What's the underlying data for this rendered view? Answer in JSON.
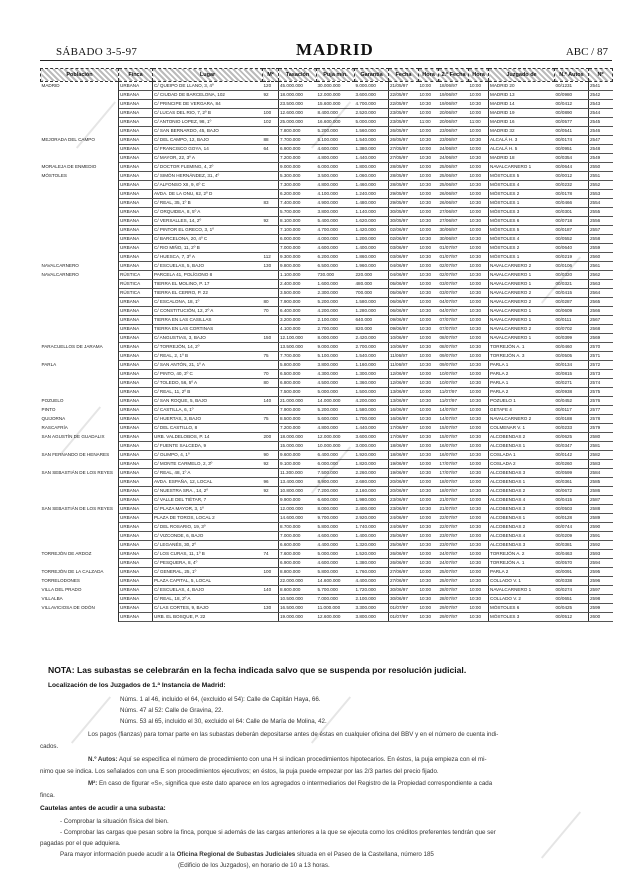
{
  "header": {
    "date": "SÁBADO 3-5-97",
    "section": "MADRID",
    "page": "ABC / 87"
  },
  "table": {
    "columns": [
      "Población",
      "Finca",
      "Lugar",
      "M²",
      "Tasación",
      "Puja mín.",
      "Garantía",
      "Fecha",
      "Hora",
      "2.ª Fecha",
      "Hora",
      "Juzgado de",
      "N.º Autos",
      "Nº"
    ],
    "rows": [
      [
        "MADRID",
        "URBANA",
        "C/ QUEIPO DE LLANO, 3, 4º",
        "120",
        "45.000.000",
        "30.000.000",
        "9.000.000",
        "21/05/97",
        "10:00",
        "18/06/97",
        "10:00",
        "MADRID 20",
        "00/1231",
        "2541"
      ],
      [
        "",
        "URBANA",
        "C/ CIUDAD DE BARCELONA, 102",
        "92",
        "18.000.000",
        "12.000.000",
        "3.600.000",
        "22/05/97",
        "10:00",
        "19/06/97",
        "10:00",
        "MADRID 13",
        "00/0980",
        "2542"
      ],
      [
        "",
        "URBANA",
        "C/ PRINCIPE DE VERGARA, 84",
        "",
        "23.500.000",
        "15.600.000",
        "4.700.000",
        "22/05/97",
        "10:30",
        "19/06/97",
        "10:30",
        "MADRID 14",
        "00/0412",
        "2543"
      ],
      [
        "",
        "URBANA",
        "C/ LUCAS DEL RIO, 7, 2º B",
        "100",
        "12.600.000",
        "8.400.000",
        "2.520.000",
        "23/05/97",
        "10:00",
        "20/06/97",
        "10:00",
        "MADRID 19",
        "00/0890",
        "2544"
      ],
      [
        "",
        "URBANA",
        "C/ ANTONIO LOPEZ, 98, 1º",
        "102",
        "25.000.000",
        "16.600.000",
        "5.000.000",
        "23/05/97",
        "11:00",
        "20/06/97",
        "11:00",
        "MADRID 16",
        "00/0577",
        "2545"
      ],
      [
        "",
        "URBANA",
        "C/ SAN BERNARDO, 45, BAJO",
        "",
        "7.800.000",
        "5.200.000",
        "1.560.000",
        "26/05/97",
        "10:00",
        "23/06/97",
        "10:00",
        "MADRID 32",
        "00/0541",
        "2546"
      ],
      [
        "MEJORADA DEL CAMPO",
        "URBANA",
        "C/ DEL CAMPO, 12, BAJO",
        "88",
        "7.700.000",
        "5.100.000",
        "1.540.000",
        "26/05/97",
        "10:30",
        "23/06/97",
        "10:30",
        "ALCALÁ H. 3",
        "00/0174",
        "2547"
      ],
      [
        "",
        "URBANA",
        "C/ FRANCISCO GOYA, 14",
        "64",
        "6.900.000",
        "4.600.000",
        "1.380.000",
        "27/05/97",
        "10:00",
        "24/06/97",
        "10:00",
        "ALCALÁ H. 5",
        "00/0951",
        "2548"
      ],
      [
        "",
        "URBANA",
        "C/ MAYOR, 22, 3º A",
        "",
        "7.200.000",
        "4.800.000",
        "1.440.000",
        "27/05/97",
        "10:30",
        "24/06/97",
        "10:30",
        "MADRID 18",
        "00/0354",
        "2549"
      ],
      [
        "MORALEJA DE ENMEDIO",
        "URBANA",
        "C/ DOCTOR FLEMING, 4, 3º",
        "",
        "9.000.000",
        "6.000.000",
        "1.800.000",
        "28/05/97",
        "10:00",
        "25/06/97",
        "10:00",
        "NAVALCARNERO 1",
        "00/0644",
        "2550"
      ],
      [
        "MÓSTOLES",
        "URBANA",
        "C/ SIMÓN HERNÁNDEZ, 31, 4º",
        "",
        "5.300.000",
        "3.500.000",
        "1.060.000",
        "28/05/97",
        "10:00",
        "25/06/97",
        "10:00",
        "MÓSTOLES 5",
        "00/0012",
        "2551"
      ],
      [
        "",
        "URBANA",
        "C/ ALFONSO XII, 9, 6º C",
        "",
        "7.300.000",
        "4.800.000",
        "1.460.000",
        "28/05/97",
        "10:30",
        "25/06/97",
        "10:30",
        "MÓSTOLES 4",
        "00/0232",
        "2552"
      ],
      [
        "",
        "URBANA",
        "AVDA. DE LA ONU, 62, 2º D",
        "",
        "6.200.000",
        "4.100.000",
        "1.240.000",
        "29/05/97",
        "10:00",
        "26/06/97",
        "10:00",
        "MÓSTOLES 2",
        "00/0178",
        "2553"
      ],
      [
        "",
        "URBANA",
        "C/ REAL, 35, 1º B",
        "83",
        "7.400.000",
        "4.900.000",
        "1.480.000",
        "29/05/97",
        "10:30",
        "26/06/97",
        "10:30",
        "MÓSTOLES 1",
        "00/0466",
        "2554"
      ],
      [
        "",
        "URBANA",
        "C/ ORQUIDEA, 8, 5º A",
        "",
        "5.700.000",
        "3.800.000",
        "1.140.000",
        "30/05/97",
        "10:00",
        "27/06/97",
        "10:00",
        "MÓSTOLES 3",
        "00/0301",
        "2555"
      ],
      [
        "",
        "URBANA",
        "C/ VERSALLES, 14, 2º",
        "92",
        "8.100.000",
        "5.400.000",
        "1.620.000",
        "30/05/97",
        "10:30",
        "27/06/97",
        "10:30",
        "MÓSTOLES 6",
        "00/0718",
        "2556"
      ],
      [
        "",
        "URBANA",
        "C/ PINTOR EL GRECO, 3, 1º",
        "",
        "7.100.000",
        "4.700.000",
        "1.420.000",
        "02/06/97",
        "10:00",
        "30/06/97",
        "10:00",
        "MÓSTOLES 5",
        "00/0187",
        "2557"
      ],
      [
        "",
        "URBANA",
        "C/ BARCELONA, 20, 4º C",
        "",
        "6.000.000",
        "4.000.000",
        "1.200.000",
        "02/06/97",
        "10:30",
        "30/06/97",
        "10:30",
        "MÓSTOLES 4",
        "00/0552",
        "2558"
      ],
      [
        "",
        "URBANA",
        "C/ RIO MIÑO, 11, 2º B",
        "",
        "7.000.000",
        "4.600.000",
        "1.400.000",
        "03/06/97",
        "10:00",
        "01/07/97",
        "10:00",
        "MÓSTOLES 2",
        "00/0640",
        "2559"
      ],
      [
        "",
        "URBANA",
        "C/ HUESCA, 7, 3º A",
        "112",
        "9.300.000",
        "6.200.000",
        "1.860.000",
        "03/06/97",
        "10:30",
        "01/07/97",
        "10:30",
        "MÓSTOLES 1",
        "00/0219",
        "2560"
      ],
      [
        "NAVALCARNERO",
        "URBANA",
        "C/ ESCUELAS, 5, BAJO",
        "130",
        "9.800.000",
        "6.500.000",
        "1.960.000",
        "04/06/97",
        "10:00",
        "02/07/97",
        "10:00",
        "NAVALCARNERO 2",
        "00/0106",
        "2561"
      ],
      [
        "NAVALCARNERO",
        "RÚSTICA",
        "PARCELA 41, POLÍGONO 8",
        "",
        "1.100.000",
        "730.000",
        "220.000",
        "04/06/97",
        "10:30",
        "02/07/97",
        "10:30",
        "NAVALCARNERO 1",
        "00/0320",
        "2562"
      ],
      [
        "",
        "RÚSTICA",
        "TIERRA EL MOLINO, P. 17",
        "",
        "2.400.000",
        "1.600.000",
        "480.000",
        "05/06/97",
        "10:00",
        "03/07/97",
        "10:00",
        "NAVALCARNERO 1",
        "00/0321",
        "2563"
      ],
      [
        "",
        "RÚSTICA",
        "TIERRA EL CERRO, P. 22",
        "",
        "3.500.000",
        "2.300.000",
        "700.000",
        "05/06/97",
        "10:30",
        "03/07/97",
        "10:30",
        "NAVALCARNERO 2",
        "00/0415",
        "2564"
      ],
      [
        "",
        "URBANA",
        "C/ ESCALONA, 18, 1º",
        "80",
        "7.900.000",
        "5.200.000",
        "1.580.000",
        "06/06/97",
        "10:00",
        "04/07/97",
        "10:00",
        "NAVALCARNERO 2",
        "00/0287",
        "2565"
      ],
      [
        "",
        "URBANA",
        "C/ CONSTITUCIÓN, 12, 2º A",
        "70",
        "6.400.000",
        "4.200.000",
        "1.280.000",
        "06/06/97",
        "10:30",
        "04/07/97",
        "10:30",
        "NAVALCARNERO 1",
        "00/0609",
        "2566"
      ],
      [
        "",
        "URBANA",
        "TIERRA EN LAS CASILLAS",
        "",
        "3.200.000",
        "2.100.000",
        "640.000",
        "09/06/97",
        "10:00",
        "07/07/97",
        "10:00",
        "NAVALCARNERO 1",
        "00/0111",
        "2567"
      ],
      [
        "",
        "URBANA",
        "TIERRA EN LAS CORTINAS",
        "",
        "4.100.000",
        "2.700.000",
        "820.000",
        "09/06/97",
        "10:30",
        "07/07/97",
        "10:30",
        "NAVALCARNERO 2",
        "00/0702",
        "2568"
      ],
      [
        "",
        "URBANA",
        "C/ ANGUSTIAS, 3, BAJO",
        "150",
        "12.100.000",
        "8.000.000",
        "2.420.000",
        "10/06/97",
        "10:00",
        "08/07/97",
        "10:00",
        "NAVALCARNERO 1",
        "00/0399",
        "2569"
      ],
      [
        "PARACUELLOS DE JARAMA",
        "URBANA",
        "C/ TORREJÓN, 14, 2º",
        "",
        "13.500.000",
        "9.000.000",
        "2.700.000",
        "10/06/97",
        "10:30",
        "08/07/97",
        "10:30",
        "TORREJÓN A. 1",
        "00/0460",
        "2570"
      ],
      [
        "",
        "URBANA",
        "C/ REAL, 2, 1º B",
        "75",
        "7.700.000",
        "5.100.000",
        "1.540.000",
        "11/06/97",
        "10:00",
        "09/07/97",
        "10:00",
        "TORREJÓN A. 3",
        "00/0505",
        "2571"
      ],
      [
        "PARLA",
        "URBANA",
        "C/ SAN ANTÓN, 21, 1º A",
        "",
        "5.800.000",
        "3.800.000",
        "1.160.000",
        "11/06/97",
        "10:30",
        "09/07/97",
        "10:30",
        "PARLA 1",
        "00/0134",
        "2572"
      ],
      [
        "",
        "URBANA",
        "C/ PINTO, 40, 3º C",
        "70",
        "6.500.000",
        "4.300.000",
        "1.300.000",
        "12/06/97",
        "10:00",
        "10/07/97",
        "10:00",
        "PARLA 2",
        "00/0815",
        "2573"
      ],
      [
        "",
        "URBANA",
        "C/ TOLEDO, 56, 5º A",
        "80",
        "6.800.000",
        "4.500.000",
        "1.360.000",
        "12/06/97",
        "10:30",
        "10/07/97",
        "10:30",
        "PARLA 1",
        "00/0271",
        "2574"
      ],
      [
        "",
        "URBANA",
        "C/ REAL, 11, 2º B",
        "",
        "7.500.000",
        "5.000.000",
        "1.500.000",
        "13/06/97",
        "10:00",
        "11/07/97",
        "10:00",
        "PARLA 2",
        "00/0938",
        "2575"
      ],
      [
        "POZUELO",
        "URBANA",
        "C/ SAN ROQUE, 5, BAJO",
        "140",
        "21.000.000",
        "14.000.000",
        "4.200.000",
        "13/06/97",
        "10:30",
        "11/07/97",
        "10:30",
        "POZUELO 1",
        "00/0452",
        "2576"
      ],
      [
        "PINTO",
        "URBANA",
        "C/ CASTILLA, 6, 1º",
        "",
        "7.900.000",
        "5.200.000",
        "1.580.000",
        "16/06/97",
        "10:00",
        "14/07/97",
        "10:00",
        "GETAFE 4",
        "00/0117",
        "2577"
      ],
      [
        "QUIJORNA",
        "URBANA",
        "C/ HUERTAS, 3, BAJO",
        "75",
        "8.500.000",
        "5.600.000",
        "1.700.000",
        "16/06/97",
        "10:30",
        "14/07/97",
        "10:30",
        "NAVALCARNERO 2",
        "00/0188",
        "2578"
      ],
      [
        "RASCAFRÍA",
        "URBANA",
        "C/ DEL CASTILLO, 8",
        "",
        "7.200.000",
        "4.800.000",
        "1.440.000",
        "17/06/97",
        "10:00",
        "15/07/97",
        "10:00",
        "COLMENAR V. 1",
        "00/0233",
        "2579"
      ],
      [
        "SAN AGUSTÍN DE GUADALIX",
        "URBANA",
        "URB. VALDELOBOS, P. 14",
        "200",
        "18.000.000",
        "12.000.000",
        "3.600.000",
        "17/06/97",
        "10:30",
        "15/07/97",
        "10:30",
        "ALCOBENDAS 2",
        "00/0625",
        "2580"
      ],
      [
        "",
        "URBANA",
        "C/ FUENTE SALCEDA, 9",
        "",
        "15.000.000",
        "10.000.000",
        "3.000.000",
        "18/06/97",
        "10:00",
        "16/07/97",
        "10:00",
        "ALCOBENDAS 1",
        "00/0347",
        "2581"
      ],
      [
        "SAN FERNANDO DE HENARES",
        "URBANA",
        "C/ OLIMPO, 4, 1º",
        "90",
        "9.600.000",
        "6.400.000",
        "1.920.000",
        "18/06/97",
        "10:30",
        "16/07/97",
        "10:30",
        "COSLADA 1",
        "00/0142",
        "2582"
      ],
      [
        "",
        "URBANA",
        "C/ MONTE CARMELO, 2, 3º",
        "92",
        "9.100.000",
        "6.000.000",
        "1.820.000",
        "19/06/97",
        "10:00",
        "17/07/97",
        "10:00",
        "COSLADA 2",
        "00/0260",
        "2583"
      ],
      [
        "SAN SEBASTIÁN DE LOS REYES",
        "URBANA",
        "C/ REAL, 48, 1º A",
        "",
        "11.300.000",
        "7.500.000",
        "2.260.000",
        "19/06/97",
        "10:30",
        "17/07/97",
        "10:30",
        "ALCOBENDAS 3",
        "00/0599",
        "2584"
      ],
      [
        "",
        "URBANA",
        "AVDA. ESPAÑA, 12, LOCAL",
        "96",
        "13.400.000",
        "8.900.000",
        "2.680.000",
        "20/06/97",
        "10:00",
        "18/07/97",
        "10:00",
        "ALCOBENDAS 1",
        "00/0361",
        "2585"
      ],
      [
        "",
        "URBANA",
        "C/ NUESTRA SRA., 14, 2º",
        "92",
        "10.800.000",
        "7.200.000",
        "2.160.000",
        "20/06/97",
        "10:30",
        "18/07/97",
        "10:30",
        "ALCOBENDAS 2",
        "00/0672",
        "2586"
      ],
      [
        "",
        "URBANA",
        "C/ VALLE DEL TIÉTAR, 7",
        "",
        "9.900.000",
        "6.600.000",
        "1.980.000",
        "23/06/97",
        "10:00",
        "21/07/97",
        "10:00",
        "ALCOBENDAS 4",
        "00/0415",
        "2587"
      ],
      [
        "SAN SEBASTIÁN DE LOS REYES",
        "URBANA",
        "C/ PLAZA MAYOR, 3, 1º",
        "",
        "12.000.000",
        "8.000.000",
        "2.400.000",
        "23/06/97",
        "10:30",
        "21/07/97",
        "10:30",
        "ALCOBENDAS 3",
        "00/0503",
        "2588"
      ],
      [
        "",
        "URBANA",
        "PLAZA DE TOROS, LOCAL 2",
        "",
        "14.600.000",
        "9.700.000",
        "2.920.000",
        "24/06/97",
        "10:00",
        "22/07/97",
        "10:00",
        "ALCOBENDAS 1",
        "00/0128",
        "2589"
      ],
      [
        "",
        "URBANA",
        "C/ DEL ROSARIO, 19, 3º",
        "",
        "8.700.000",
        "5.800.000",
        "1.740.000",
        "24/06/97",
        "10:30",
        "22/07/97",
        "10:30",
        "ALCOBENDAS 2",
        "00/0744",
        "2590"
      ],
      [
        "",
        "URBANA",
        "C/ VIZCONDE, 6, BAJO",
        "",
        "7.000.000",
        "4.600.000",
        "1.400.000",
        "25/06/97",
        "10:00",
        "23/07/97",
        "10:00",
        "ALCOBENDAS 4",
        "00/0209",
        "2591"
      ],
      [
        "",
        "URBANA",
        "C/ LEGANÉS, 30, 2º",
        "",
        "6.600.000",
        "4.400.000",
        "1.320.000",
        "25/06/97",
        "10:30",
        "23/07/97",
        "10:30",
        "ALCOBENDAS 3",
        "00/0381",
        "2592"
      ],
      [
        "TORREJÓN DE ARDOZ",
        "URBANA",
        "C/ LOS CURAS, 11, 1º B",
        "74",
        "7.600.000",
        "5.000.000",
        "1.520.000",
        "26/06/97",
        "10:00",
        "24/07/97",
        "10:00",
        "TORREJÓN A. 2",
        "00/0463",
        "2593"
      ],
      [
        "",
        "URBANA",
        "C/ PESQUERA, 8, 4º",
        "",
        "6.900.000",
        "4.600.000",
        "1.380.000",
        "26/06/97",
        "10:30",
        "24/07/97",
        "10:30",
        "TORREJÓN A. 1",
        "00/0570",
        "2594"
      ],
      [
        "TORREJÓN DE LA CALZADA",
        "URBANA",
        "C/ GENERAL, 25, 1º",
        "100",
        "8.800.000",
        "5.800.000",
        "1.760.000",
        "27/06/97",
        "10:00",
        "25/07/97",
        "10:00",
        "PARLA 2",
        "00/0091",
        "2595"
      ],
      [
        "TORRELODONES",
        "URBANA",
        "PLAZA CAPITAL, 5, LOCAL",
        "",
        "22.000.000",
        "14.600.000",
        "4.400.000",
        "27/06/97",
        "10:30",
        "25/07/97",
        "10:30",
        "COLLADO V. 1",
        "00/0338",
        "2596"
      ],
      [
        "VILLA DEL PRADO",
        "URBANA",
        "C/ ESCUELAS, 4, BAJO",
        "140",
        "8.600.000",
        "5.700.000",
        "1.720.000",
        "30/06/97",
        "10:00",
        "28/07/97",
        "10:00",
        "NAVALCARNERO 1",
        "00/0274",
        "2597"
      ],
      [
        "VILLALBA",
        "URBANA",
        "C/ REAL, 18, 2º A",
        "",
        "10.500.000",
        "7.000.000",
        "2.100.000",
        "30/06/97",
        "10:30",
        "28/07/97",
        "10:30",
        "COLLADO V. 2",
        "00/0651",
        "2598"
      ],
      [
        "VILLAVICIOSA DE ODÓN",
        "URBANA",
        "C/ LAS CORTES, 9, BAJO",
        "130",
        "16.500.000",
        "11.000.000",
        "3.300.000",
        "01/07/97",
        "10:00",
        "29/07/97",
        "10:00",
        "MÓSTOLES 6",
        "00/0425",
        "2599"
      ],
      [
        "",
        "URBANA",
        "URB. EL BOSQUE, P. 22",
        "",
        "19.000.000",
        "12.600.000",
        "3.800.000",
        "01/07/97",
        "10:30",
        "29/07/97",
        "10:30",
        "MÓSTOLES 3",
        "00/0512",
        "2600"
      ]
    ]
  },
  "notes": {
    "nota": "NOTA: Las subastas se celebrarán en la fecha indicada salvo que se suspenda por resolución judicial.",
    "localizacion_title": "Localización de los Juzgados de 1.ª Instancia de Madrid:",
    "localizacion": [
      "Núms. 1 al 46, incluido el 64, (excluido el 54): Calle de Capitán Haya, 66.",
      "Núms. 47 al 52: Calle de Gravina, 22.",
      "Núms. 53 al 65, incluido el 30, excluido el 64: Calle de María de Molina, 42."
    ],
    "pagos": "Los pagos (fianzas) para tomar parte en las subastas deberán depositarse antes de éstas en cualquier oficina del BBV y en el número de cuenta indi-",
    "pagos2": "cados.",
    "autos_label": "N.º Autos:",
    "autos": "Aquí se especifica el número de procedimiento con una H si indican procedimientos hipotecarios. En éstos, la puja empieza con el mi-",
    "autos2": "nimo que se indica. Los señalados con una E son procedimientos ejecutivos; en éstos, la puja puede empezar por las 2/3 partes del precio fijado.",
    "m2_label": "M²:",
    "m2": "En caso de figurar «S», significa que este dato aparece en los agregados o intermediarios del Registro de la Propiedad correspondiente a cada",
    "m2b": "finca.",
    "cautelas_title": "Cautelas antes de acudir a una subasta:",
    "cautelas": [
      "- Comprobar la situación física del bien.",
      "- Comprobar las cargas que pesan sobre la finca, porque si además de las cargas anteriores a la que se ejecuta como los créditos preferentes tendrán que ser"
    ],
    "cautelas2": "pagadas por el que adquiera.",
    "info_pre": "Para mayor información puede acudir a la ",
    "info_bold": "Oficina Regional de Subastas Judiciales",
    "info_post": " situada en el Paseo de la Castellana, número 185",
    "info2": "(Edificio de los Juzgados), en horario de 10 a 13 horas."
  },
  "watermark": "ABC"
}
